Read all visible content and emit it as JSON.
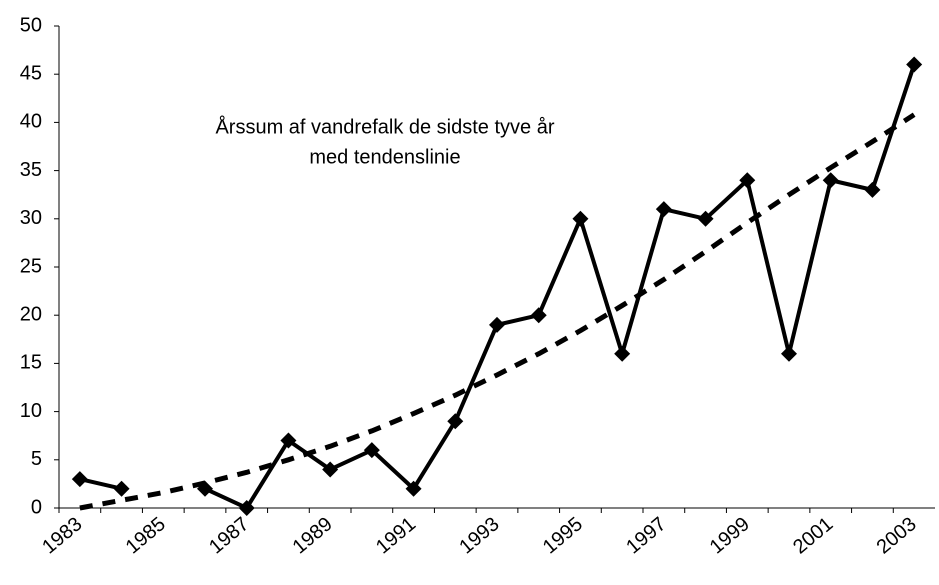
{
  "chart_data": {
    "type": "line",
    "title": [
      "Årssum af vandrefalk de sidste tyve år",
      "med tendenslinie"
    ],
    "categories": [
      "1983",
      null,
      "1985",
      null,
      "1987",
      null,
      "1989",
      null,
      "1991",
      null,
      "1993",
      null,
      "1995",
      null,
      "1997",
      null,
      "1999",
      null,
      "2001",
      null,
      "2003"
    ],
    "series": [
      {
        "color": "#000000",
        "style": "solid",
        "marker": "diamond",
        "values": [
          3,
          2,
          null,
          2,
          0,
          7,
          4,
          6,
          2,
          9,
          19,
          20,
          30,
          16,
          31,
          30,
          34,
          16,
          34,
          33,
          46
        ]
      },
      {
        "color": "#000000",
        "style": "dashed",
        "values": [
          0,
          0.8,
          1.6,
          2.6,
          3.7,
          5,
          6.4,
          8,
          9.8,
          11.7,
          13.8,
          16,
          18.4,
          21,
          23.7,
          26.6,
          29.6,
          32.5,
          35.3,
          38,
          40.8
        ]
      }
    ],
    "ylim": [
      0,
      50
    ],
    "yticks": [
      0,
      5,
      10,
      15,
      20,
      25,
      30,
      35,
      40,
      45,
      50
    ],
    "grid": false
  }
}
